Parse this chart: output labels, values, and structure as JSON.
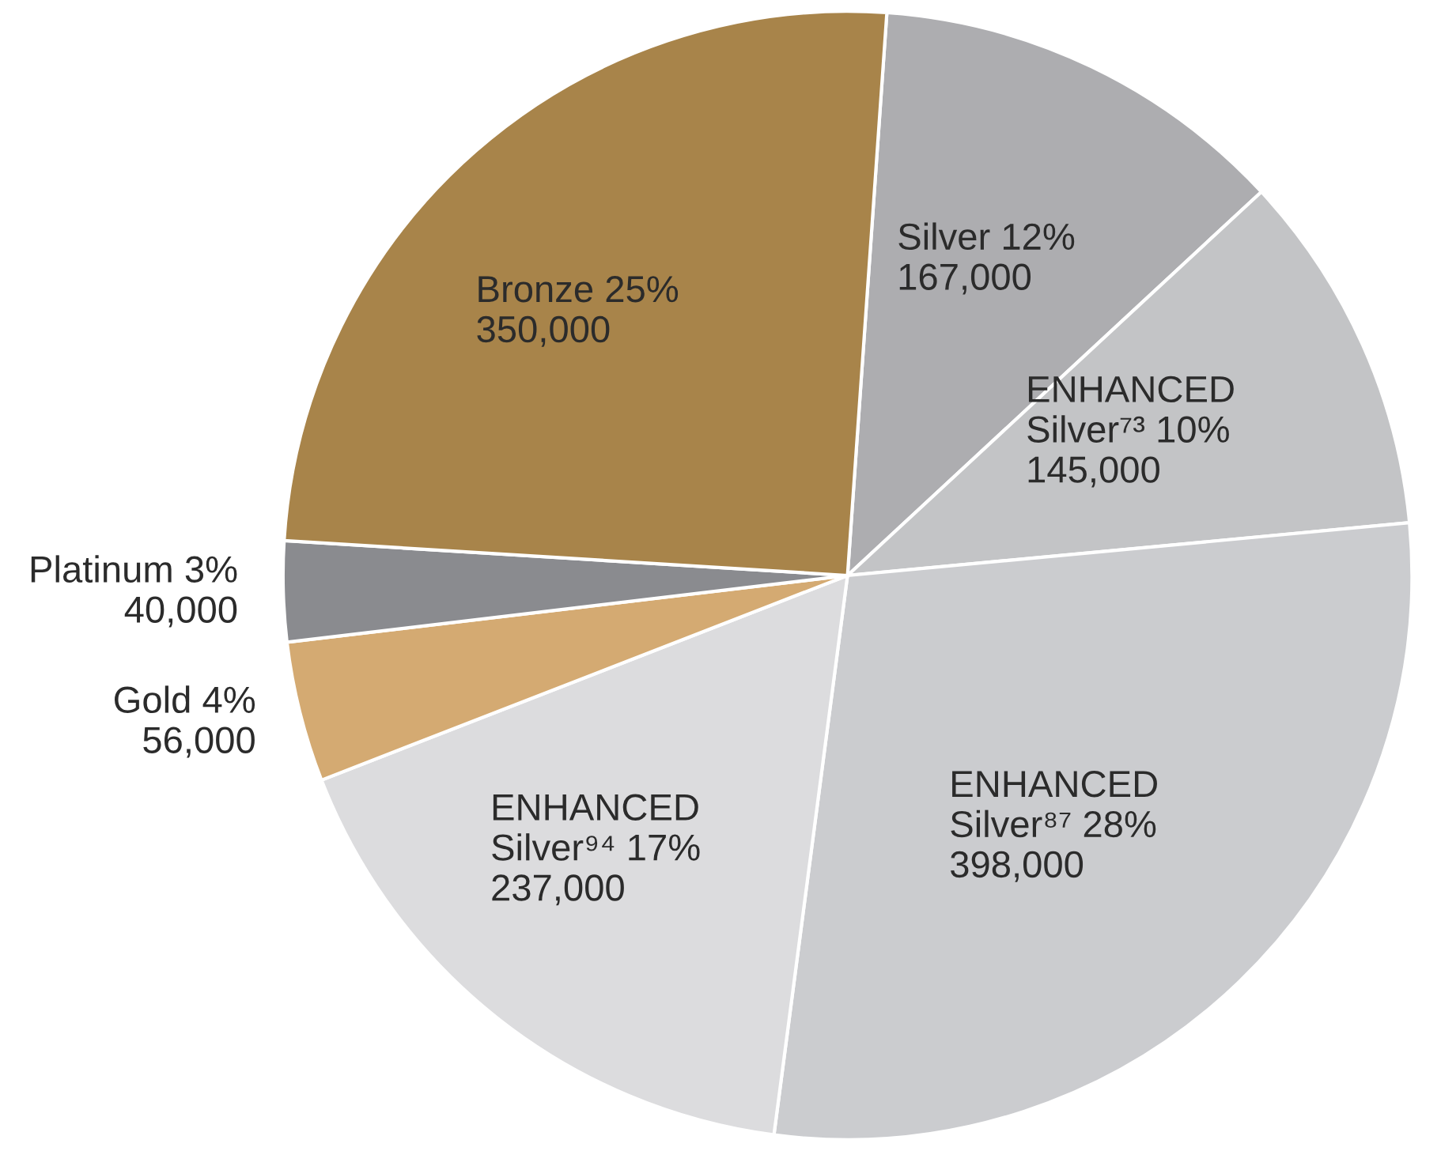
{
  "chart_data": {
    "type": "pie",
    "categories": [
      "Silver 12%",
      "ENHANCED\nSilver⁷³ 10%",
      "ENHANCED\nSilver⁸⁷ 28%",
      "ENHANCED\nSilver⁹⁴ 17%",
      "Gold 4%",
      "Platinum 3%",
      "Bronze 25%"
    ],
    "values": [
      167000,
      145000,
      398000,
      237000,
      56000,
      40000,
      350000
    ],
    "colors": [
      "#adadb0",
      "#c3c4c6",
      "#cbcccf",
      "#dcdcde",
      "#d4aa72",
      "#8a8b8f",
      "#a8844a"
    ],
    "value_labels": [
      "167,000",
      "145,000",
      "398,000",
      "237,000",
      "56,000",
      "40,000",
      "350,000"
    ]
  }
}
